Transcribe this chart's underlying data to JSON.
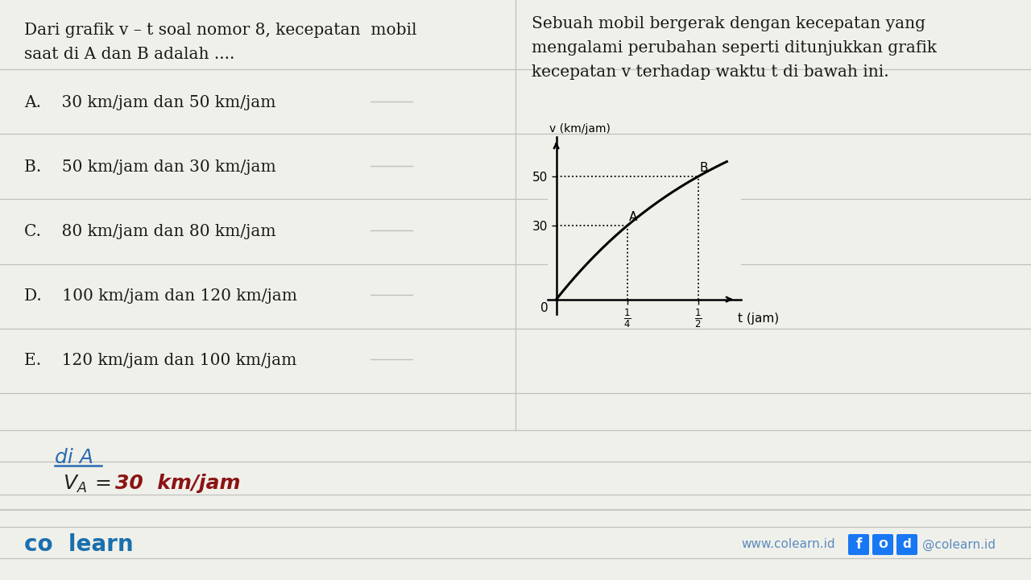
{
  "bg_color": "#f0f0eb",
  "line_color": "#c0c0bc",
  "text_color": "#1a1a1a",
  "question_line1": "Dari grafik v – t soal nomor 8, kecepatan  mobil",
  "question_line2": "saat di A dan B adalah ....",
  "options": [
    "A.    30 km/jam dan 50 km/jam",
    "B.    50 km/jam dan 30 km/jam",
    "C.    80 km/jam dan 80 km/jam",
    "D.    100 km/jam dan 120 km/jam",
    "E.    120 km/jam dan 100 km/jam"
  ],
  "right_line1": "Sebuah mobil bergerak dengan kecepatan yang",
  "right_line2": "mengalami perubahan seperti ditunjukkan grafik",
  "right_line3": "kecepatan v terhadap waktu t di bawah ini.",
  "colearn_color": "#1a6fad",
  "footer_text_color": "#4a7ab5",
  "www_text": "www.colearn.id",
  "at_text": "@colearn.id",
  "handwritten_color_blue": "#2a6cb0",
  "handwritten_color_red": "#8b1414"
}
